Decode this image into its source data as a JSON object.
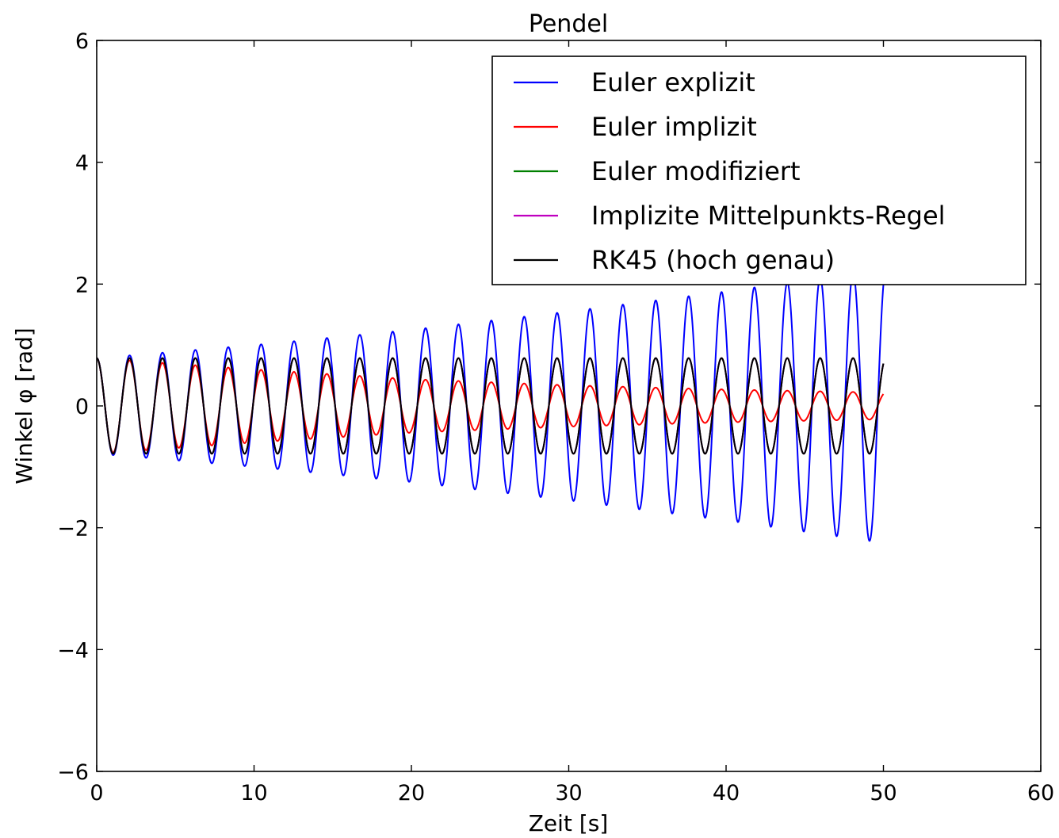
{
  "chart_data": {
    "type": "line",
    "title": "Pendel",
    "xlabel": "Zeit [s]",
    "ylabel": "Winkel φ [rad]",
    "xlim": [
      0,
      60
    ],
    "ylim": [
      -6,
      6
    ],
    "x_ticks": [
      0,
      10,
      20,
      30,
      40,
      50,
      60
    ],
    "y_ticks": [
      -6,
      -4,
      -2,
      0,
      2,
      4,
      6
    ],
    "x_tick_labels": [
      "0",
      "10",
      "20",
      "30",
      "40",
      "50",
      "60"
    ],
    "y_tick_labels": [
      "−6",
      "−4",
      "−2",
      "0",
      "2",
      "4",
      "6"
    ],
    "grid": false,
    "legend_position": "top-right",
    "t_range": [
      0,
      50
    ],
    "period": 2.09,
    "initial_angle": 0.785,
    "series": [
      {
        "name": "Euler explizit",
        "color": "#0000ff",
        "amplitude_points": [
          [
            0,
            0.785
          ],
          [
            10,
            1.0
          ],
          [
            20,
            1.25
          ],
          [
            30,
            1.55
          ],
          [
            40,
            1.88
          ],
          [
            50,
            2.25
          ]
        ]
      },
      {
        "name": "Euler implizit",
        "color": "#ff0000",
        "amplitude_points": [
          [
            0,
            0.785
          ],
          [
            10,
            0.6
          ],
          [
            20,
            0.44
          ],
          [
            30,
            0.34
          ],
          [
            40,
            0.27
          ],
          [
            50,
            0.22
          ]
        ]
      },
      {
        "name": "Euler modifiziert",
        "color": "#008000",
        "amplitude_points": [
          [
            0,
            0.785
          ],
          [
            50,
            0.785
          ]
        ]
      },
      {
        "name": "Implizite Mittelpunkts-Regel",
        "color": "#bf00bf",
        "amplitude_points": [
          [
            0,
            0.785
          ],
          [
            50,
            0.785
          ]
        ]
      },
      {
        "name": "RK45 (hoch genau)",
        "color": "#000000",
        "amplitude_points": [
          [
            0,
            0.785
          ],
          [
            50,
            0.785
          ]
        ]
      }
    ]
  }
}
